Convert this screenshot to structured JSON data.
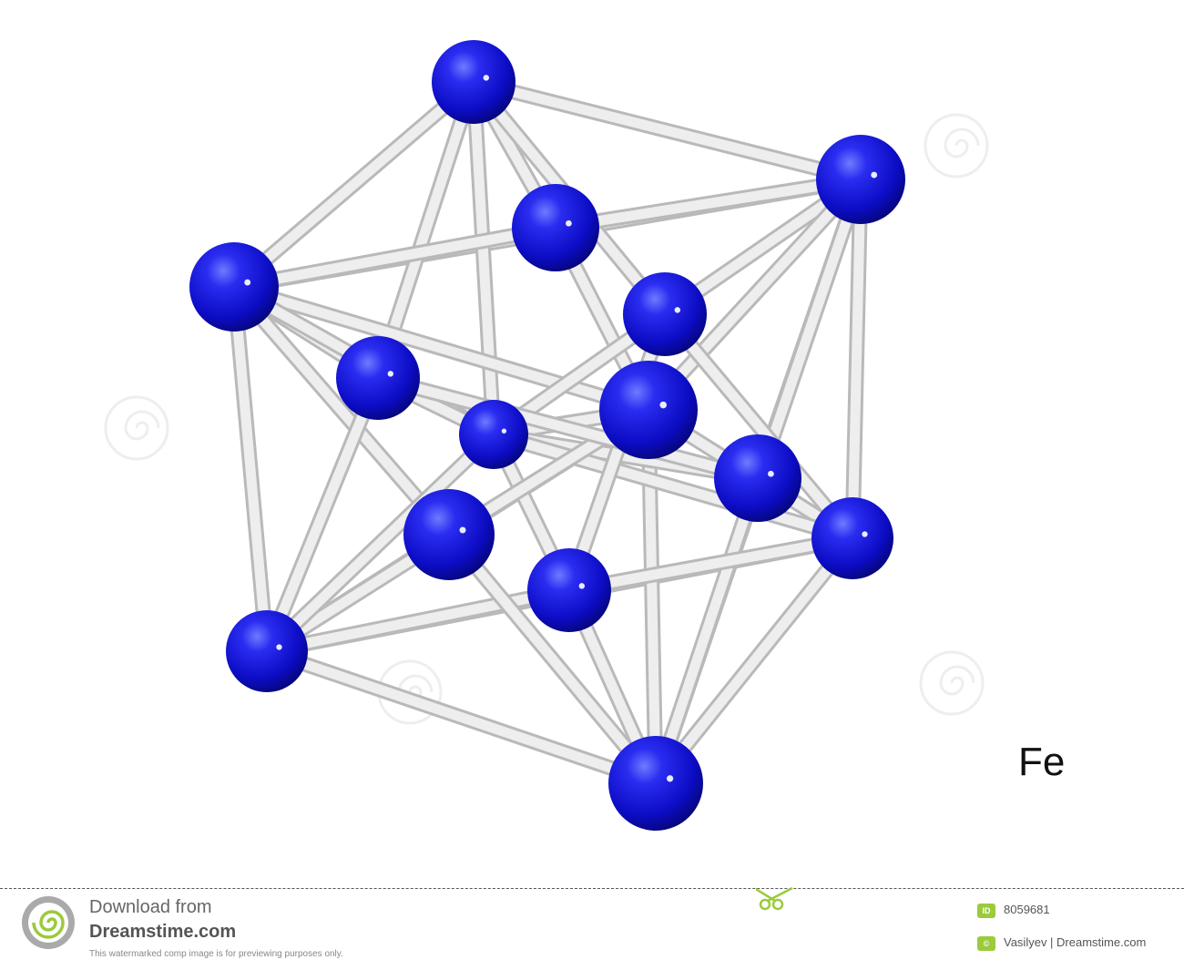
{
  "figure": {
    "element_symbol": "Fe",
    "subject": "iron-crystal-lattice-model",
    "atom_color": "#1a1ad6",
    "bond_color": "#dcdcdc"
  },
  "footer": {
    "download_from": "Download from",
    "site_name": "Dreamstime.com",
    "note": "This watermarked comp image is for previewing purposes only.",
    "id_badge": "ID",
    "image_id": "8059681",
    "copyright_badge": "©",
    "author": "Vasilyev | Dreamstime.com",
    "accent_color": "#9acb3a"
  }
}
